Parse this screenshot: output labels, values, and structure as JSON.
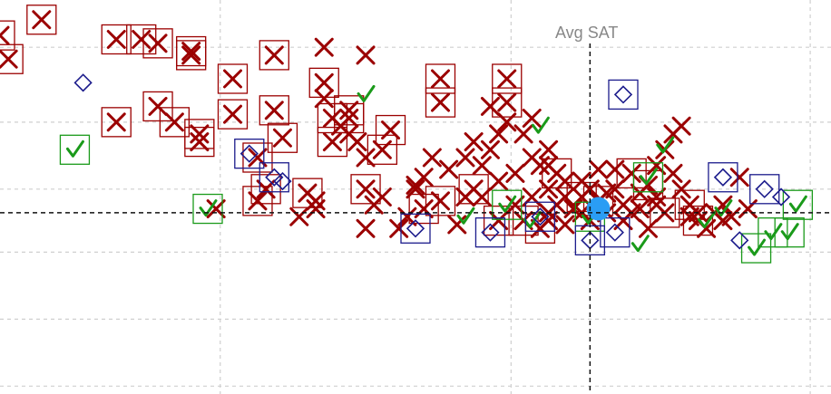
{
  "chart_data": {
    "type": "scatter",
    "title": "",
    "xlabel": "",
    "ylabel": "",
    "xlim": [
      0,
      100
    ],
    "ylim": [
      0,
      100
    ],
    "grid": true,
    "reference_lines": {
      "vertical": {
        "label": "Avg SAT",
        "x": 71
      },
      "horizontal": {
        "y": 46
      }
    },
    "highlight_point": {
      "x": 72,
      "y": 47,
      "color": "#2a9df4"
    },
    "styles": {
      "rejected": {
        "symbol": "x",
        "color": "#9b0000"
      },
      "accepted": {
        "symbol": "check",
        "color": "#1a9a1a"
      },
      "waitlisted": {
        "symbol": "diamond",
        "color": "#1c1c8c"
      }
    },
    "series": [
      {
        "key": "rejected",
        "points": [
          [
            1,
            85
          ],
          [
            0,
            91
          ],
          [
            5,
            95
          ],
          [
            14,
            69
          ],
          [
            14,
            90
          ],
          [
            17,
            90
          ],
          [
            19,
            89
          ],
          [
            19,
            73
          ],
          [
            21,
            69
          ],
          [
            23,
            86
          ],
          [
            24,
            64
          ],
          [
            24,
            66
          ],
          [
            23,
            87
          ],
          [
            26,
            47
          ],
          [
            28,
            80
          ],
          [
            28,
            71
          ],
          [
            31,
            49
          ],
          [
            31,
            60
          ],
          [
            32,
            52
          ],
          [
            33,
            72
          ],
          [
            33,
            86
          ],
          [
            34,
            65
          ],
          [
            36,
            45
          ],
          [
            37,
            51
          ],
          [
            38,
            47
          ],
          [
            38,
            49
          ],
          [
            39,
            88
          ],
          [
            39,
            75
          ],
          [
            39,
            79
          ],
          [
            40,
            70
          ],
          [
            40,
            64
          ],
          [
            41,
            68
          ],
          [
            42,
            70
          ],
          [
            42,
            72
          ],
          [
            42,
            66
          ],
          [
            43,
            64
          ],
          [
            44,
            60
          ],
          [
            44,
            42
          ],
          [
            44,
            52
          ],
          [
            44,
            86
          ],
          [
            45,
            48
          ],
          [
            46,
            50
          ],
          [
            46,
            62
          ],
          [
            47,
            67
          ],
          [
            48,
            42
          ],
          [
            49,
            45
          ],
          [
            50,
            52
          ],
          [
            50,
            53
          ],
          [
            51,
            55
          ],
          [
            51,
            47
          ],
          [
            52,
            60
          ],
          [
            53,
            80
          ],
          [
            53,
            74
          ],
          [
            53,
            49
          ],
          [
            54,
            57
          ],
          [
            55,
            43
          ],
          [
            56,
            50
          ],
          [
            56,
            60
          ],
          [
            57,
            52
          ],
          [
            57,
            64
          ],
          [
            58,
            58
          ],
          [
            58,
            50
          ],
          [
            59,
            62
          ],
          [
            59,
            73
          ],
          [
            60,
            44
          ],
          [
            60,
            54
          ],
          [
            60,
            66
          ],
          [
            61,
            69
          ],
          [
            61,
            74
          ],
          [
            61,
            80
          ],
          [
            62,
            56
          ],
          [
            62,
            48
          ],
          [
            63,
            44
          ],
          [
            63,
            66
          ],
          [
            64,
            60
          ],
          [
            64,
            70
          ],
          [
            64,
            50
          ],
          [
            65,
            58
          ],
          [
            65,
            42
          ],
          [
            66,
            44
          ],
          [
            66,
            52
          ],
          [
            66,
            58
          ],
          [
            66,
            62
          ],
          [
            66,
            46
          ],
          [
            67,
            48
          ],
          [
            67,
            56
          ],
          [
            68,
            54
          ],
          [
            68,
            43
          ],
          [
            68,
            50
          ],
          [
            69,
            47
          ],
          [
            70,
            50
          ],
          [
            70,
            46
          ],
          [
            70,
            54
          ],
          [
            71,
            52
          ],
          [
            71,
            44
          ],
          [
            72,
            57
          ],
          [
            72,
            49
          ],
          [
            73,
            46
          ],
          [
            73,
            51
          ],
          [
            74,
            52
          ],
          [
            74,
            57
          ],
          [
            75,
            48
          ],
          [
            75,
            44
          ],
          [
            76,
            56
          ],
          [
            76,
            46
          ],
          [
            77,
            51
          ],
          [
            77,
            47
          ],
          [
            78,
            53
          ],
          [
            78,
            42
          ],
          [
            79,
            50
          ],
          [
            79,
            48
          ],
          [
            79,
            58
          ],
          [
            80,
            46
          ],
          [
            80,
            62
          ],
          [
            81,
            66
          ],
          [
            81,
            56
          ],
          [
            82,
            68
          ],
          [
            82,
            52
          ],
          [
            83,
            48
          ],
          [
            83,
            45
          ],
          [
            84,
            46
          ],
          [
            84,
            44
          ],
          [
            85,
            42
          ],
          [
            86,
            46
          ],
          [
            87,
            48
          ],
          [
            87,
            44
          ],
          [
            88,
            45
          ],
          [
            89,
            55
          ],
          [
            90,
            47
          ]
        ],
        "boxed": [
          0,
          1,
          2,
          3,
          4,
          5,
          6,
          7,
          8,
          9,
          10,
          11,
          12,
          14,
          15,
          16,
          17,
          18,
          19,
          20,
          21,
          23,
          28,
          29,
          30,
          32,
          33,
          38,
          42,
          43,
          49,
          51,
          52,
          53,
          58,
          64,
          68,
          69,
          72,
          78,
          85,
          90,
          96,
          103,
          107,
          112,
          118,
          121
        ]
      },
      {
        "key": "accepted",
        "points": [
          [
            9,
            62
          ],
          [
            25,
            47
          ],
          [
            44,
            76
          ],
          [
            56,
            45
          ],
          [
            61,
            48
          ],
          [
            64,
            44
          ],
          [
            65,
            68
          ],
          [
            71,
            45
          ],
          [
            77,
            38
          ],
          [
            78,
            55
          ],
          [
            80,
            63
          ],
          [
            85,
            44
          ],
          [
            87,
            47
          ],
          [
            91,
            37
          ],
          [
            93,
            41
          ],
          [
            95,
            41
          ],
          [
            96,
            48
          ]
        ],
        "boxed": [
          0,
          1,
          4,
          7,
          9,
          13,
          14,
          15,
          16
        ]
      },
      {
        "key": "waitlisted",
        "points": [
          [
            10,
            79
          ],
          [
            30,
            61
          ],
          [
            33,
            55
          ],
          [
            34,
            54
          ],
          [
            50,
            42
          ],
          [
            59,
            41
          ],
          [
            65,
            45
          ],
          [
            71,
            39
          ],
          [
            74,
            41
          ],
          [
            75,
            76
          ],
          [
            87,
            55
          ],
          [
            89,
            39
          ],
          [
            92,
            52
          ],
          [
            94,
            50
          ]
        ],
        "boxed": [
          1,
          2,
          4,
          5,
          6,
          7,
          8,
          9,
          10,
          12
        ]
      }
    ]
  }
}
